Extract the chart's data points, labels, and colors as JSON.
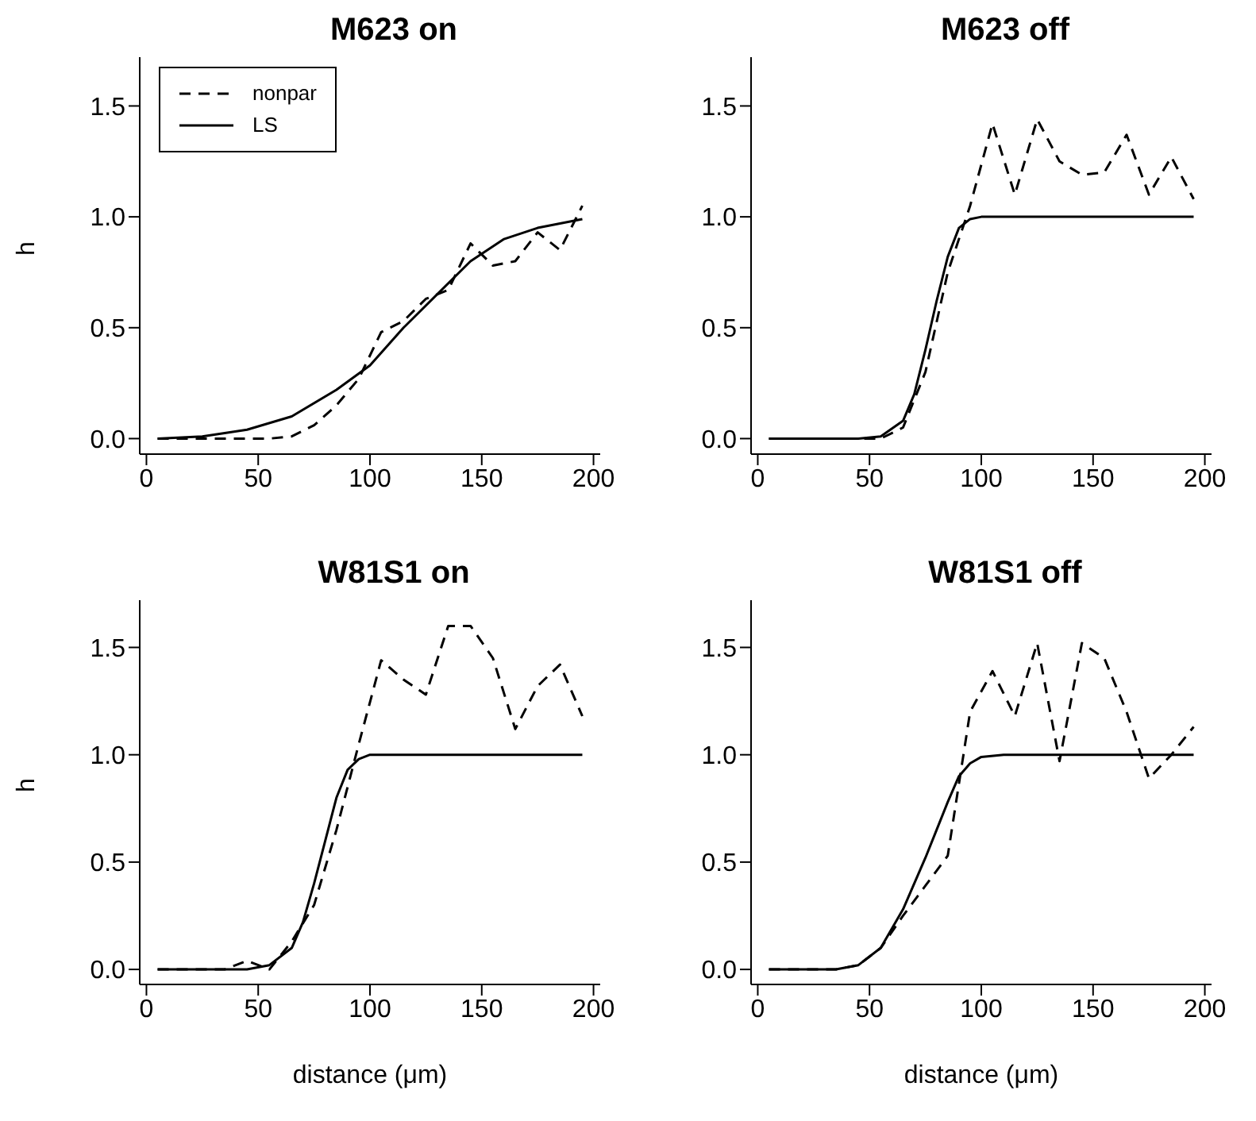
{
  "chart_data": [
    {
      "type": "line",
      "title": "M623 on",
      "ylabel": "h",
      "xlim": [
        -3,
        203
      ],
      "xticks": [
        0,
        50,
        100,
        150,
        200
      ],
      "ylim": [
        -0.07,
        1.72
      ],
      "yticks": [
        {
          "value": 0,
          "label": "0.0"
        },
        {
          "value": 0.5,
          "label": "0.5"
        },
        {
          "value": 1,
          "label": "1.0"
        },
        {
          "value": 1.5,
          "label": "1.5"
        }
      ],
      "grid": false,
      "legend": "top left",
      "marker": "none",
      "series": [
        {
          "name": "nonpar",
          "color": "#000000",
          "line_style": "dashed",
          "x": [
            5,
            15,
            25,
            35,
            45,
            55,
            65,
            75,
            85,
            95,
            105,
            115,
            125,
            135,
            145,
            155,
            165,
            175,
            185,
            195
          ],
          "values": [
            0,
            0,
            0,
            0,
            0,
            0,
            0.01,
            0.06,
            0.15,
            0.27,
            0.48,
            0.53,
            0.63,
            0.67,
            0.88,
            0.78,
            0.8,
            0.93,
            0.85,
            1.05
          ]
        },
        {
          "name": "LS",
          "color": "#000000",
          "line_style": "solid",
          "x": [
            5,
            25,
            45,
            65,
            85,
            100,
            115,
            130,
            145,
            160,
            175,
            195
          ],
          "values": [
            0,
            0.01,
            0.04,
            0.1,
            0.22,
            0.33,
            0.5,
            0.65,
            0.8,
            0.9,
            0.95,
            0.99
          ]
        }
      ]
    },
    {
      "type": "line",
      "title": "M623 off",
      "xlim": [
        -3,
        203
      ],
      "xticks": [
        0,
        50,
        100,
        150,
        200
      ],
      "ylim": [
        -0.07,
        1.72
      ],
      "yticks": [
        {
          "value": 0,
          "label": "0.0"
        },
        {
          "value": 0.5,
          "label": "0.5"
        },
        {
          "value": 1,
          "label": "1.0"
        },
        {
          "value": 1.5,
          "label": "1.5"
        }
      ],
      "grid": false,
      "marker": "none",
      "series": [
        {
          "color": "#000000",
          "line_style": "dashed",
          "x": [
            5,
            15,
            25,
            35,
            45,
            55,
            65,
            75,
            85,
            95,
            105,
            115,
            125,
            135,
            145,
            155,
            165,
            175,
            185,
            195
          ],
          "values": [
            0,
            0,
            0,
            0,
            0,
            0,
            0.05,
            0.3,
            0.75,
            1.05,
            1.42,
            1.1,
            1.44,
            1.25,
            1.19,
            1.2,
            1.37,
            1.1,
            1.27,
            1.08
          ]
        },
        {
          "color": "#000000",
          "line_style": "solid",
          "x": [
            5,
            45,
            55,
            65,
            70,
            75,
            80,
            85,
            90,
            95,
            100,
            195
          ],
          "values": [
            0,
            0,
            0.01,
            0.08,
            0.2,
            0.4,
            0.62,
            0.82,
            0.95,
            0.99,
            1,
            1
          ]
        }
      ]
    },
    {
      "type": "line",
      "title": "W81S1 on",
      "xlabel": "distance (μm)",
      "ylabel": "h",
      "xlim": [
        -3,
        203
      ],
      "xticks": [
        0,
        50,
        100,
        150,
        200
      ],
      "ylim": [
        -0.07,
        1.72
      ],
      "yticks": [
        {
          "value": 0,
          "label": "0.0"
        },
        {
          "value": 0.5,
          "label": "0.5"
        },
        {
          "value": 1,
          "label": "1.0"
        },
        {
          "value": 1.5,
          "label": "1.5"
        }
      ],
      "grid": false,
      "marker": "none",
      "series": [
        {
          "color": "#000000",
          "line_style": "dashed",
          "x": [
            5,
            15,
            25,
            35,
            45,
            55,
            65,
            75,
            85,
            95,
            105,
            115,
            125,
            135,
            145,
            155,
            165,
            175,
            185,
            195
          ],
          "values": [
            0,
            0,
            0,
            0,
            0.04,
            0,
            0.13,
            0.3,
            0.65,
            1.05,
            1.44,
            1.35,
            1.28,
            1.6,
            1.6,
            1.45,
            1.12,
            1.32,
            1.42,
            1.18
          ]
        },
        {
          "color": "#000000",
          "line_style": "solid",
          "x": [
            5,
            45,
            55,
            65,
            70,
            75,
            80,
            85,
            90,
            95,
            100,
            195
          ],
          "values": [
            0,
            0,
            0.02,
            0.1,
            0.22,
            0.4,
            0.6,
            0.8,
            0.93,
            0.98,
            1,
            1
          ]
        }
      ]
    },
    {
      "type": "line",
      "title": "W81S1 off",
      "xlabel": "distance (μm)",
      "xlim": [
        -3,
        203
      ],
      "xticks": [
        0,
        50,
        100,
        150,
        200
      ],
      "ylim": [
        -0.07,
        1.72
      ],
      "yticks": [
        {
          "value": 0,
          "label": "0.0"
        },
        {
          "value": 0.5,
          "label": "0.5"
        },
        {
          "value": 1,
          "label": "1.0"
        },
        {
          "value": 1.5,
          "label": "1.5"
        }
      ],
      "grid": false,
      "marker": "none",
      "series": [
        {
          "color": "#000000",
          "line_style": "dashed",
          "x": [
            5,
            15,
            25,
            35,
            45,
            55,
            65,
            75,
            85,
            95,
            105,
            115,
            125,
            135,
            145,
            155,
            165,
            175,
            185,
            195
          ],
          "values": [
            0,
            0,
            0,
            0,
            0.02,
            0.1,
            0.25,
            0.39,
            0.53,
            1.2,
            1.39,
            1.18,
            1.52,
            0.97,
            1.52,
            1.45,
            1.2,
            0.89,
            1.0,
            1.13
          ]
        },
        {
          "color": "#000000",
          "line_style": "solid",
          "x": [
            5,
            35,
            45,
            55,
            65,
            75,
            80,
            85,
            90,
            95,
            100,
            110,
            195
          ],
          "values": [
            0,
            0,
            0.02,
            0.1,
            0.28,
            0.52,
            0.65,
            0.78,
            0.9,
            0.96,
            0.99,
            1,
            1
          ]
        }
      ]
    }
  ]
}
